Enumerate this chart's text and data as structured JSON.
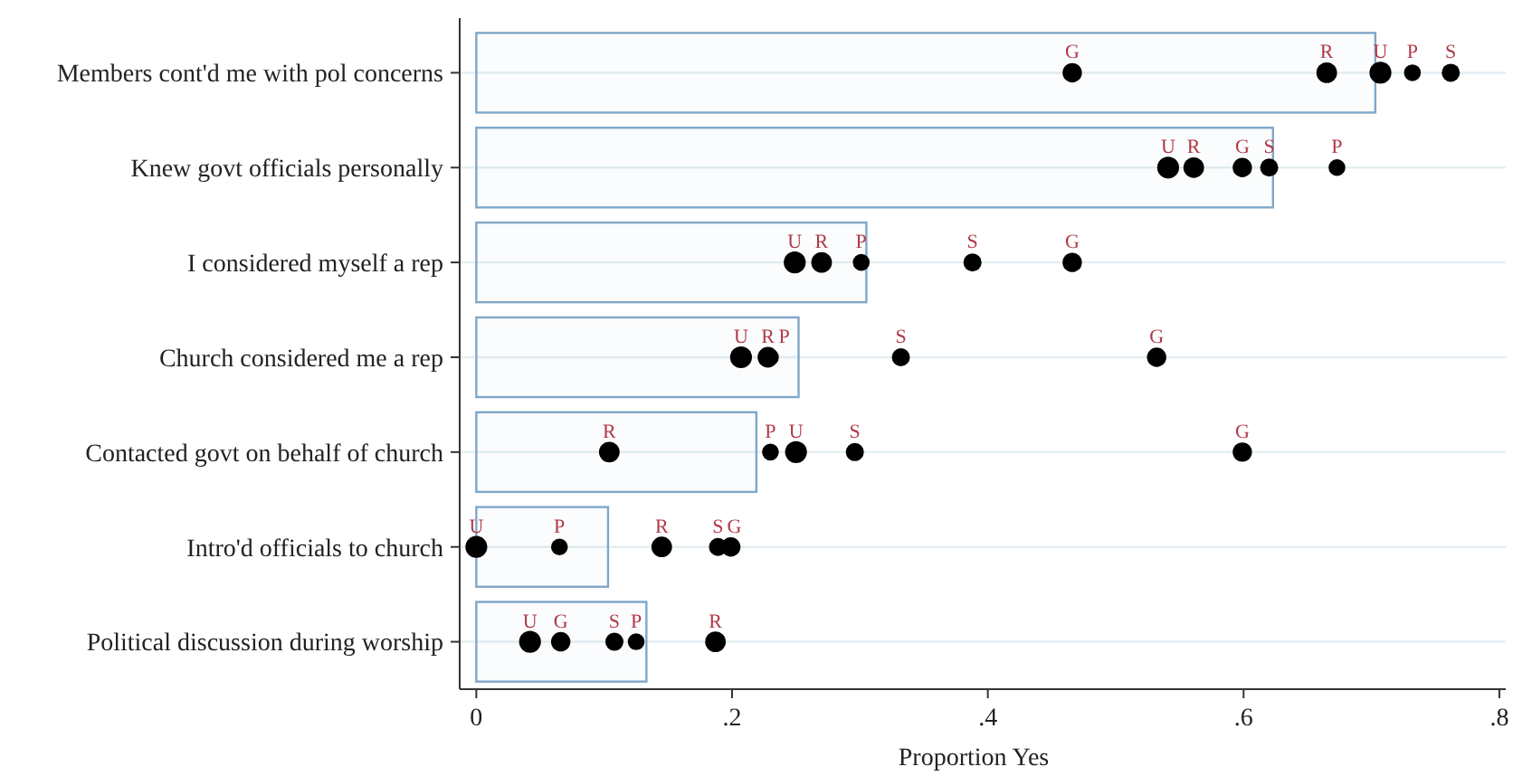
{
  "chart_data": {
    "type": "bar",
    "orientation": "horizontal",
    "xlabel": "Proportion Yes",
    "categories": [
      "Members cont'd me with pol concerns",
      "Knew govt officials personally",
      "I considered myself a rep",
      "Church considered me a rep",
      "Contacted govt on behalf of church",
      "Intro'd officials to church",
      "Political discussion during worship"
    ],
    "xlim": [
      -0.013,
      0.805
    ],
    "xticks": [
      {
        "value": 0,
        "label": "0"
      },
      {
        "value": 0.2,
        "label": ".2"
      },
      {
        "value": 0.4,
        "label": ".4"
      },
      {
        "value": 0.6,
        "label": ".6"
      },
      {
        "value": 0.8,
        "label": ".8"
      }
    ],
    "grid": "y",
    "legend": false,
    "marker": "circle",
    "series": [
      {
        "color": "#7fa7c9",
        "values": [
          0.703,
          0.623,
          0.305,
          0.252,
          0.219,
          0.103,
          0.133
        ]
      },
      {
        "type": "scatter",
        "name": "U",
        "color": "#000000",
        "values": [
          0.707,
          0.541,
          0.249,
          0.207,
          0.25,
          0,
          0.042
        ]
      },
      {
        "type": "scatter",
        "name": "R",
        "color": "#000000",
        "values": [
          0.665,
          0.561,
          0.27,
          0.228,
          0.104,
          0.145,
          0.187
        ]
      },
      {
        "type": "scatter",
        "name": "G",
        "color": "#000000",
        "values": [
          0.466,
          0.599,
          0.466,
          0.532,
          0.599,
          0.199,
          0.066
        ]
      },
      {
        "type": "scatter",
        "name": "S",
        "color": "#000000",
        "values": [
          0.762,
          0.62,
          0.388,
          0.332,
          0.296,
          0.189,
          0.108
        ]
      },
      {
        "type": "scatter",
        "name": "P",
        "color": "#000000",
        "values": [
          0.732,
          0.673,
          0.301,
          0.23,
          0.23,
          0.065,
          0.125
        ]
      }
    ]
  }
}
